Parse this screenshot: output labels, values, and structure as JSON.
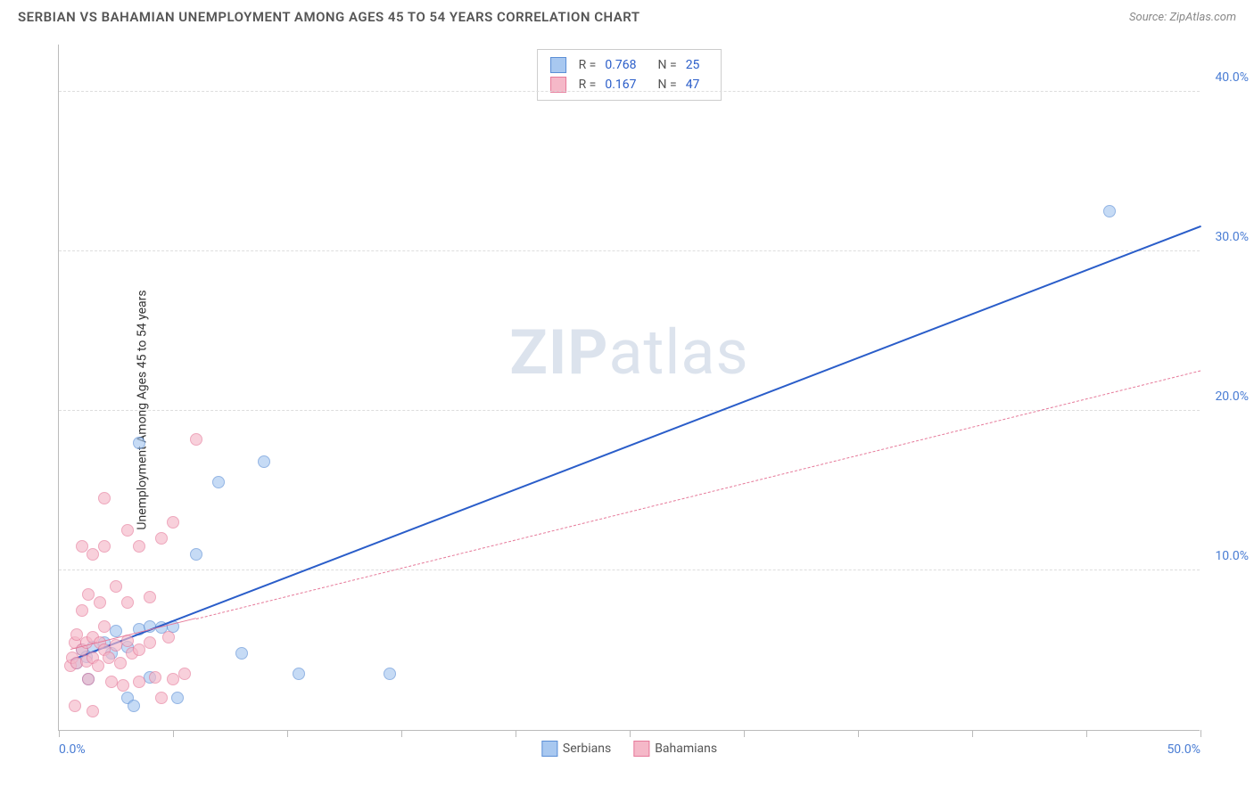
{
  "title": "SERBIAN VS BAHAMIAN UNEMPLOYMENT AMONG AGES 45 TO 54 YEARS CORRELATION CHART",
  "source_prefix": "Source: ",
  "source_name": "ZipAtlas.com",
  "ylabel": "Unemployment Among Ages 45 to 54 years",
  "watermark_bold": "ZIP",
  "watermark_light": "atlas",
  "chart": {
    "type": "scatter",
    "xlim": [
      0,
      50
    ],
    "ylim": [
      0,
      43
    ],
    "xtick_labels": [
      {
        "pos": 0,
        "label": "0.0%",
        "align": "left"
      },
      {
        "pos": 50,
        "label": "50.0%",
        "align": "right"
      }
    ],
    "xtick_marks": [
      0,
      5,
      10,
      15,
      20,
      25,
      30,
      35,
      40,
      45,
      50
    ],
    "yticks": [
      {
        "pos": 10,
        "label": "10.0%"
      },
      {
        "pos": 20,
        "label": "20.0%"
      },
      {
        "pos": 30,
        "label": "30.0%"
      },
      {
        "pos": 40,
        "label": "40.0%"
      }
    ],
    "background_color": "#ffffff",
    "grid_color": "#dddddd",
    "axis_color": "#bbbbbb",
    "tick_label_color": "#4a7dd4",
    "series": [
      {
        "name": "Serbians",
        "fill": "#a8c8f0",
        "stroke": "#5b8fd6",
        "marker_size": 14,
        "r_label": "R =",
        "r_value": "0.768",
        "n_label": "N =",
        "n_value": "25",
        "trend": {
          "x1": 0.5,
          "y1": 4.3,
          "x2": 50,
          "y2": 31.5,
          "color": "#2a5dc9",
          "width": 2.5,
          "dash": "solid",
          "solid_until_x": 50
        },
        "points": [
          [
            0.8,
            4.2
          ],
          [
            1.0,
            5.0
          ],
          [
            1.2,
            4.6
          ],
          [
            1.5,
            5.2
          ],
          [
            1.3,
            3.2
          ],
          [
            2.0,
            5.5
          ],
          [
            2.3,
            4.8
          ],
          [
            2.5,
            6.2
          ],
          [
            3.0,
            5.2
          ],
          [
            3.0,
            2.0
          ],
          [
            3.3,
            1.5
          ],
          [
            3.5,
            6.3
          ],
          [
            4.0,
            6.5
          ],
          [
            4.0,
            3.3
          ],
          [
            4.5,
            6.4
          ],
          [
            5.0,
            6.5
          ],
          [
            5.2,
            2.0
          ],
          [
            6.0,
            11.0
          ],
          [
            7.0,
            15.5
          ],
          [
            8.0,
            4.8
          ],
          [
            9.0,
            16.8
          ],
          [
            10.5,
            3.5
          ],
          [
            14.5,
            3.5
          ],
          [
            3.5,
            18.0
          ],
          [
            46.0,
            32.5
          ]
        ]
      },
      {
        "name": "Bahamians",
        "fill": "#f5b8c8",
        "stroke": "#e67a9a",
        "marker_size": 14,
        "r_label": "R =",
        "r_value": "0.167",
        "n_label": "N =",
        "n_value": "47",
        "trend": {
          "x1": 0.5,
          "y1": 5.0,
          "x2": 50,
          "y2": 22.5,
          "color": "#e67a9a",
          "width": 1.5,
          "dash": "dashed",
          "solid_until_x": 6
        },
        "points": [
          [
            0.5,
            4.0
          ],
          [
            0.6,
            4.5
          ],
          [
            0.7,
            5.5
          ],
          [
            0.8,
            4.2
          ],
          [
            0.8,
            6.0
          ],
          [
            1.0,
            5.0
          ],
          [
            1.0,
            7.5
          ],
          [
            1.0,
            11.5
          ],
          [
            1.2,
            4.3
          ],
          [
            1.2,
            5.5
          ],
          [
            1.3,
            8.5
          ],
          [
            1.3,
            3.2
          ],
          [
            1.5,
            4.5
          ],
          [
            1.5,
            5.8
          ],
          [
            1.5,
            11.0
          ],
          [
            1.7,
            4.0
          ],
          [
            1.8,
            5.5
          ],
          [
            1.8,
            8.0
          ],
          [
            2.0,
            5.0
          ],
          [
            2.0,
            6.5
          ],
          [
            2.0,
            11.5
          ],
          [
            2.0,
            14.5
          ],
          [
            2.2,
            4.5
          ],
          [
            2.3,
            3.0
          ],
          [
            2.5,
            5.3
          ],
          [
            2.5,
            9.0
          ],
          [
            2.7,
            4.2
          ],
          [
            2.8,
            2.8
          ],
          [
            3.0,
            5.6
          ],
          [
            3.0,
            8.0
          ],
          [
            3.0,
            12.5
          ],
          [
            3.2,
            4.8
          ],
          [
            3.5,
            3.0
          ],
          [
            3.5,
            5.0
          ],
          [
            3.5,
            11.5
          ],
          [
            4.0,
            5.5
          ],
          [
            4.0,
            8.3
          ],
          [
            4.2,
            3.3
          ],
          [
            4.5,
            2.0
          ],
          [
            4.5,
            12.0
          ],
          [
            4.8,
            5.8
          ],
          [
            5.0,
            3.2
          ],
          [
            5.0,
            13.0
          ],
          [
            5.5,
            3.5
          ],
          [
            6.0,
            18.2
          ],
          [
            0.7,
            1.5
          ],
          [
            1.5,
            1.2
          ]
        ]
      }
    ]
  }
}
